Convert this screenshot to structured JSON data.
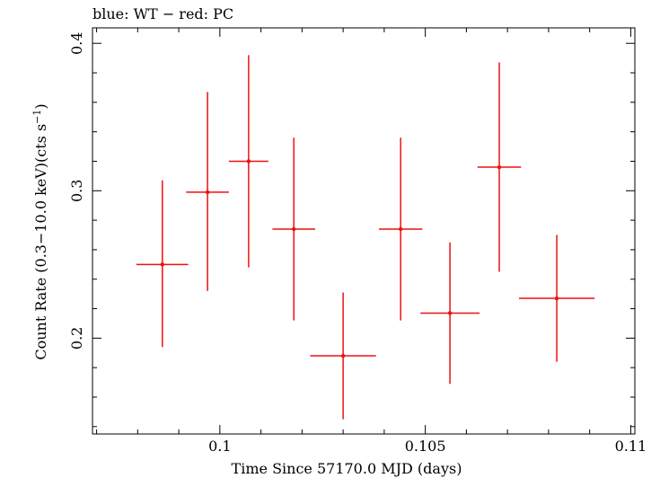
{
  "chart_data": {
    "type": "scatter",
    "title": "blue: WT − red: PC",
    "xlabel": "Time Since 57170.0 MJD (days)",
    "ylabel_main": "Count Rate (0.3−10.0 keV)(cts s",
    "ylabel_sup": "−1",
    "ylabel_close": ")",
    "xlim": [
      0.0969,
      0.1101
    ],
    "ylim": [
      0.135,
      0.4105
    ],
    "x_ticks": [
      {
        "value": 0.1,
        "label": "0.1"
      },
      {
        "value": 0.105,
        "label": "0.105"
      },
      {
        "value": 0.11,
        "label": "0.11"
      }
    ],
    "y_ticks": [
      {
        "value": 0.2,
        "label": "0.2"
      },
      {
        "value": 0.3,
        "label": "0.3"
      },
      {
        "value": 0.4,
        "label": "0.4"
      }
    ],
    "grid": false,
    "series": [
      {
        "color": "#ee1111",
        "points": [
          {
            "x": 0.0986,
            "xerr": 0.00063,
            "y": 0.25,
            "yerr_low": 0.056,
            "yerr_high": 0.057
          },
          {
            "x": 0.0997,
            "xerr": 0.00052,
            "y": 0.299,
            "yerr_low": 0.067,
            "yerr_high": 0.068
          },
          {
            "x": 0.1007,
            "xerr": 0.00048,
            "y": 0.32,
            "yerr_low": 0.072,
            "yerr_high": 0.072
          },
          {
            "x": 0.1018,
            "xerr": 0.00052,
            "y": 0.274,
            "yerr_low": 0.062,
            "yerr_high": 0.062
          },
          {
            "x": 0.103,
            "xerr": 0.0008,
            "y": 0.188,
            "yerr_low": 0.043,
            "yerr_high": 0.043
          },
          {
            "x": 0.1044,
            "xerr": 0.00053,
            "y": 0.274,
            "yerr_low": 0.062,
            "yerr_high": 0.062
          },
          {
            "x": 0.1056,
            "xerr": 0.00072,
            "y": 0.217,
            "yerr_low": 0.048,
            "yerr_high": 0.048
          },
          {
            "x": 0.1068,
            "xerr": 0.00053,
            "y": 0.316,
            "yerr_low": 0.071,
            "yerr_high": 0.071
          },
          {
            "x": 0.1082,
            "xerr": 0.00092,
            "y": 0.227,
            "yerr_low": 0.043,
            "yerr_high": 0.043
          }
        ]
      }
    ]
  }
}
